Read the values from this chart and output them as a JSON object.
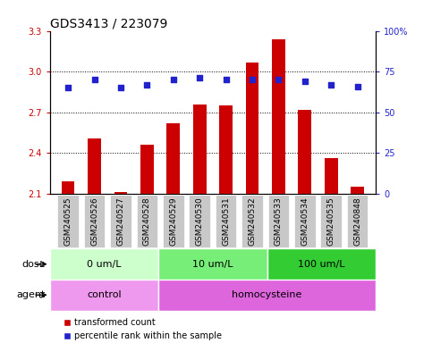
{
  "title": "GDS3413 / 223079",
  "samples": [
    "GSM240525",
    "GSM240526",
    "GSM240527",
    "GSM240528",
    "GSM240529",
    "GSM240530",
    "GSM240531",
    "GSM240532",
    "GSM240533",
    "GSM240534",
    "GSM240535",
    "GSM240848"
  ],
  "transformed_count": [
    2.19,
    2.51,
    2.11,
    2.46,
    2.62,
    2.76,
    2.75,
    3.07,
    3.24,
    2.72,
    2.36,
    2.15
  ],
  "percentile_rank": [
    65,
    70,
    65,
    67,
    70,
    71,
    70,
    70,
    70,
    69,
    67,
    66
  ],
  "bar_color": "#cc0000",
  "dot_color": "#2222cc",
  "ylim_left": [
    2.1,
    3.3
  ],
  "ylim_right": [
    0,
    100
  ],
  "yticks_left": [
    2.1,
    2.4,
    2.7,
    3.0,
    3.3
  ],
  "yticks_right": [
    0,
    25,
    50,
    75,
    100
  ],
  "ytick_labels_left": [
    "2.1",
    "2.4",
    "2.7",
    "3.0",
    "3.3"
  ],
  "ytick_labels_right": [
    "0",
    "25",
    "50",
    "75",
    "100%"
  ],
  "hlines": [
    2.4,
    2.7,
    3.0
  ],
  "dose_groups": [
    {
      "label": "0 um/L",
      "start": 0,
      "end": 4,
      "color": "#ccffcc"
    },
    {
      "label": "10 um/L",
      "start": 4,
      "end": 8,
      "color": "#77ee77"
    },
    {
      "label": "100 um/L",
      "start": 8,
      "end": 12,
      "color": "#33cc33"
    }
  ],
  "agent_groups": [
    {
      "label": "control",
      "start": 0,
      "end": 4,
      "color": "#ee99ee"
    },
    {
      "label": "homocysteine",
      "start": 4,
      "end": 12,
      "color": "#dd66dd"
    }
  ],
  "dose_label": "dose",
  "agent_label": "agent",
  "legend_red": "transformed count",
  "legend_blue": "percentile rank within the sample",
  "bar_width": 0.5,
  "sample_label_fontsize": 6.5,
  "tick_label_fontsize": 7,
  "title_fontsize": 10,
  "group_fontsize": 8,
  "legend_fontsize": 7,
  "plot_bg": "#ffffff",
  "xtick_bg": "#c8c8c8"
}
